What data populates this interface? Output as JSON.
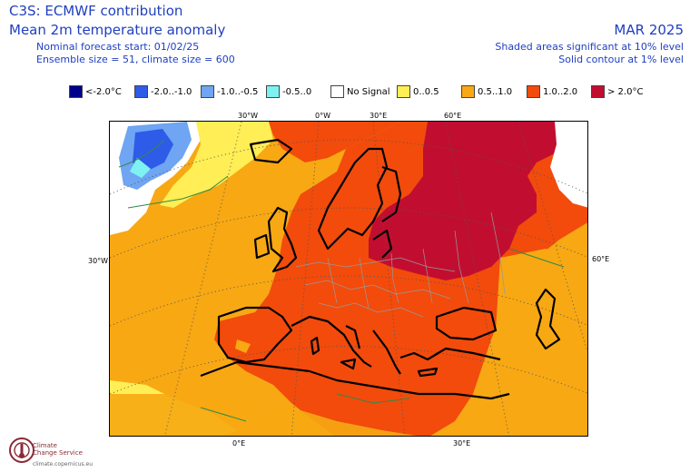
{
  "header": {
    "title": "C3S: ECMWF contribution",
    "subtitle": "Mean 2m temperature anomaly",
    "forecast_start": "Nominal forecast start: 01/02/25",
    "ensemble": "Ensemble size = 51, climate size = 600",
    "period": "MAR 2025",
    "sig_shaded": "Shaded areas significant at 10% level",
    "sig_contour": "Solid contour at 1% level"
  },
  "legend": [
    {
      "label": "<-2.0°C",
      "color": "#00008b"
    },
    {
      "label": "-2.0..-1.0",
      "color": "#2e5be8"
    },
    {
      "label": "-1.0..-0.5",
      "color": "#6fa5f2"
    },
    {
      "label": "-0.5..0",
      "color": "#7ef2f2"
    },
    {
      "label": "No Signal",
      "color": "#ffffff"
    },
    {
      "label": "0..0.5",
      "color": "#ffee55"
    },
    {
      "label": "0.5..1.0",
      "color": "#f7a813"
    },
    {
      "label": "1.0..2.0",
      "color": "#f24b0c"
    },
    {
      "label": "> 2.0°C",
      "color": "#c10e30"
    }
  ],
  "axis_labels": {
    "top": [
      "30°W",
      "0°W",
      "30°E",
      "60°E"
    ],
    "left": "30°W",
    "right": "60°E",
    "bottom": [
      "0°E",
      "30°E"
    ]
  },
  "logo": {
    "name_line1": "Climate",
    "name_line2": "Change Service",
    "url": "climate.copernicus.eu"
  }
}
